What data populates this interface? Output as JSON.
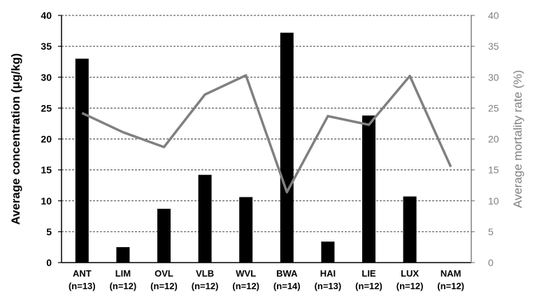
{
  "chart_data": {
    "type": "bar",
    "categories": [
      "ANT",
      "LIM",
      "OVL",
      "VLB",
      "WVL",
      "BWA",
      "HAI",
      "LIE",
      "LUX",
      "NAM"
    ],
    "category_subtitles": [
      "(n=13)",
      "(n=12)",
      "(n=12)",
      "(n=12)",
      "(n=12)",
      "(n=14)",
      "(n=13)",
      "(n=12)",
      "(n=12)",
      "(n=12)"
    ],
    "series": [
      {
        "type": "bar",
        "axis": "left",
        "color": "#000000",
        "values": [
          33.0,
          2.5,
          8.7,
          14.2,
          10.6,
          37.2,
          3.4,
          23.8,
          10.7,
          0
        ]
      },
      {
        "type": "line",
        "axis": "right",
        "color": "#808080",
        "values": [
          24.2,
          21.1,
          18.7,
          27.2,
          30.3,
          11.4,
          23.7,
          22.3,
          30.2,
          15.5
        ]
      }
    ],
    "ylabel": "Average concentration (μg/kg)",
    "y2label": "Average mortality rate (%)",
    "ylim": [
      0,
      40
    ],
    "y2lim": [
      0,
      40
    ],
    "yticks": [
      0,
      5,
      10,
      15,
      20,
      25,
      30,
      35,
      40
    ],
    "y2ticks": [
      0,
      5,
      10,
      15,
      20,
      25,
      30,
      35,
      40
    ],
    "grid": "horizontal dashed",
    "axis_color": "#000000",
    "right_axis_color": "#808080",
    "grid_color": "#404040"
  }
}
